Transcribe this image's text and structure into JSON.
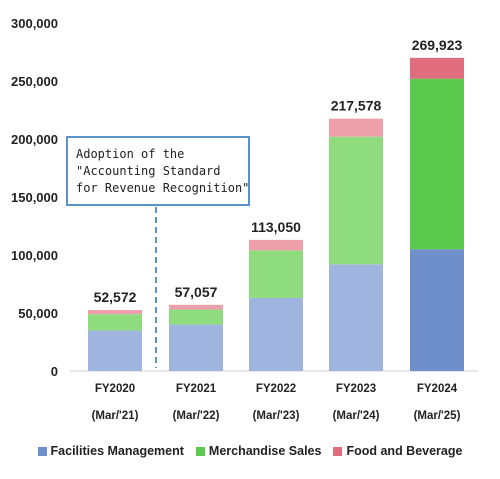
{
  "chart_data": {
    "type": "bar",
    "stacked": true,
    "categories": [
      "FY2020",
      "FY2021",
      "FY2022",
      "FY2023",
      "FY2024"
    ],
    "category_sublabels": [
      "(Mar/'21)",
      "(Mar/'22)",
      "(Mar/'23)",
      "(Mar/'24)",
      "(Mar/'25)"
    ],
    "series": [
      {
        "name": "Facilities Management",
        "values": [
          35000,
          40000,
          63000,
          92000,
          105000
        ],
        "color": "#6e8fc9",
        "color_light": "#9fb4de"
      },
      {
        "name": "Merchandise Sales",
        "values": [
          14000,
          13000,
          41000,
          110000,
          147000
        ],
        "color": "#5cc94f",
        "color_light": "#8fdc7f"
      },
      {
        "name": "Food and Beverage",
        "values": [
          3572,
          4057,
          9050,
          15578,
          17923
        ],
        "color": "#e06c7d",
        "color_light": "#eda0ab"
      }
    ],
    "highlight_index": 4,
    "totals": [
      "52,572",
      "57,057",
      "113,050",
      "217,578",
      "269,923"
    ],
    "ylim": [
      0,
      300000
    ],
    "yticks": [
      "0",
      "50,000",
      "100,000",
      "150,000",
      "200,000",
      "250,000",
      "300,000"
    ],
    "grid": false,
    "legend_position": "bottom",
    "title": "",
    "xlabel": "",
    "ylabel": "",
    "annotation": {
      "lines": [
        "Adoption of the",
        "\"Accounting Standard",
        "for Revenue Recognition\""
      ],
      "color": "#5b93c8"
    }
  }
}
